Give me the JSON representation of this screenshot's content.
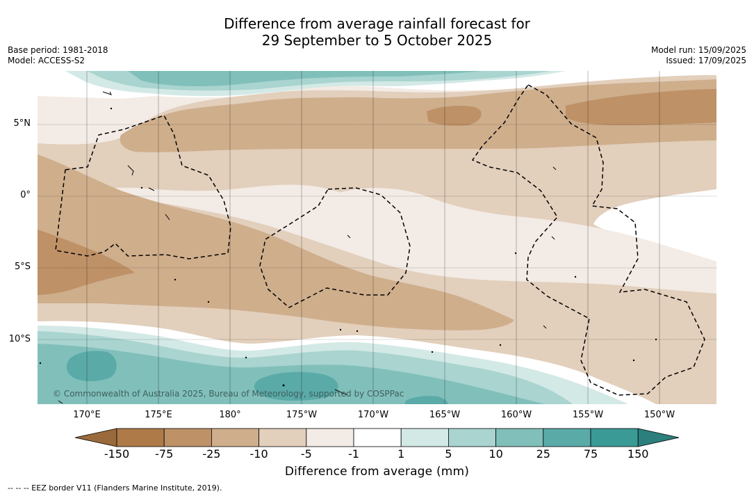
{
  "title": {
    "line1": "Difference from average rainfall forecast for",
    "line2": "29 September to 5 October 2025"
  },
  "meta": {
    "base_period": "Base period: 1981-2018",
    "model": "Model: ACCESS-S2",
    "model_run": "Model run: 15/09/2025",
    "issued": "Issued: 17/09/2025"
  },
  "map": {
    "lat_labels": [
      "5°N",
      "0°",
      "5°S",
      "10°S"
    ],
    "lon_labels": [
      "170°E",
      "175°E",
      "180°",
      "175°W",
      "170°W",
      "165°W",
      "160°W",
      "155°W",
      "150°W"
    ],
    "copyright": "© Commonwealth of Australia 2025, Bureau of Meteorology, supported by COSPPac"
  },
  "colorbar": {
    "ticks": [
      "-150",
      "-75",
      "-25",
      "-10",
      "-5",
      "-1",
      "1",
      "5",
      "10",
      "25",
      "75",
      "150"
    ],
    "colors": [
      "#9b6a3c",
      "#ae7b48",
      "#be9167",
      "#cfae8c",
      "#e2cfbc",
      "#f3ebe5",
      "#ffffff",
      "#d3e9e6",
      "#a9d4d0",
      "#81bfbb",
      "#5aaaa8",
      "#3a9a96",
      "#2c7f7c"
    ],
    "label": "Difference from average (mm)"
  },
  "footer": {
    "legend_text": "--  --  -- EEZ border V11 (Flanders Marine Institute, 2019)."
  }
}
